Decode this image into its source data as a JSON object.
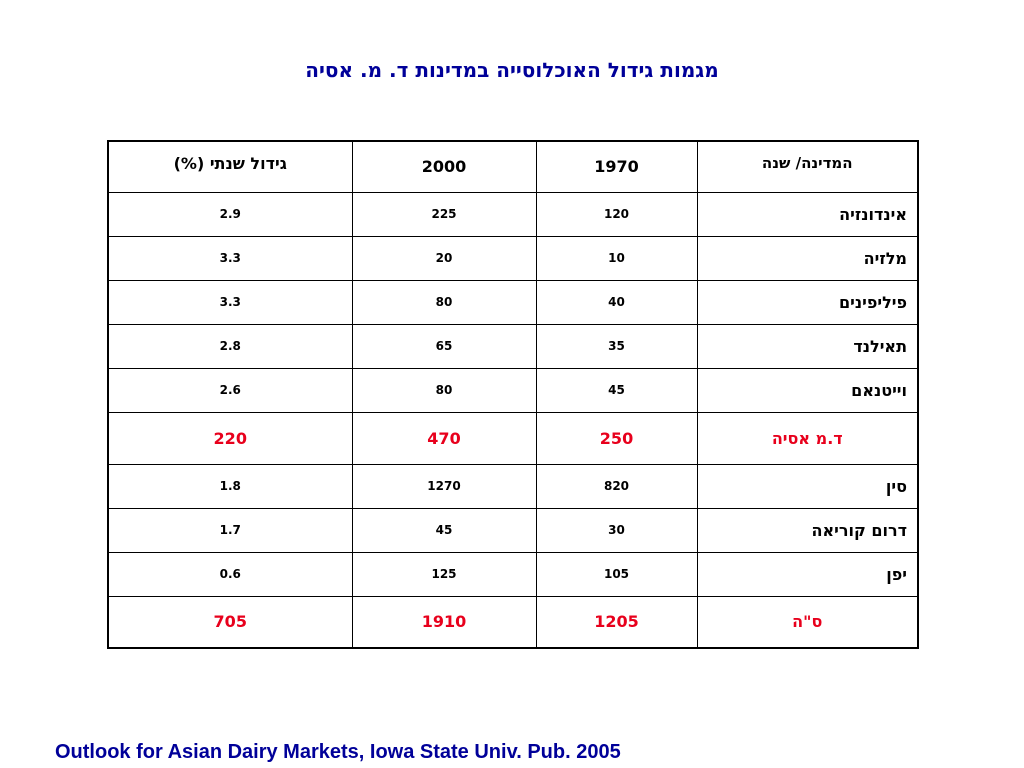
{
  "title": "מגמות גידול האוכלוסייה במדינות ד. מ. אסיה",
  "table": {
    "headers": {
      "country": "המדינה/ שנה",
      "y1970": "1970",
      "y2000": "2000",
      "growth": "גידול שנתי (%)"
    },
    "rows": [
      {
        "country": "אינדונזיה",
        "y1970": "120",
        "y2000": "225",
        "growth": "2.9"
      },
      {
        "country": "מלזיה",
        "y1970": "10",
        "y2000": "20",
        "growth": "3.3"
      },
      {
        "country": "פיליפינים",
        "y1970": "40",
        "y2000": "80",
        "growth": "3.3"
      },
      {
        "country": "תאילנד",
        "y1970": "35",
        "y2000": "65",
        "growth": "2.8"
      },
      {
        "country": "וייטנאם",
        "y1970": "45",
        "y2000": "80",
        "growth": "2.6"
      },
      {
        "country": "ד.מ אסיה",
        "y1970": "250",
        "y2000": "470",
        "growth": "220"
      },
      {
        "country": "סין",
        "y1970": "820",
        "y2000": "1270",
        "growth": "1.8"
      },
      {
        "country": "דרום קוריאה",
        "y1970": "30",
        "y2000": "45",
        "growth": "1.7"
      },
      {
        "country": "יפן",
        "y1970": "105",
        "y2000": "125",
        "growth": "0.6"
      },
      {
        "country": "ס\"ה",
        "y1970": "1205",
        "y2000": "1910",
        "growth": "705"
      }
    ]
  },
  "source": "Outlook for Asian Dairy Markets, Iowa State Univ. Pub.  2005",
  "colors": {
    "title": "#000099",
    "highlight": "#e8001c"
  }
}
